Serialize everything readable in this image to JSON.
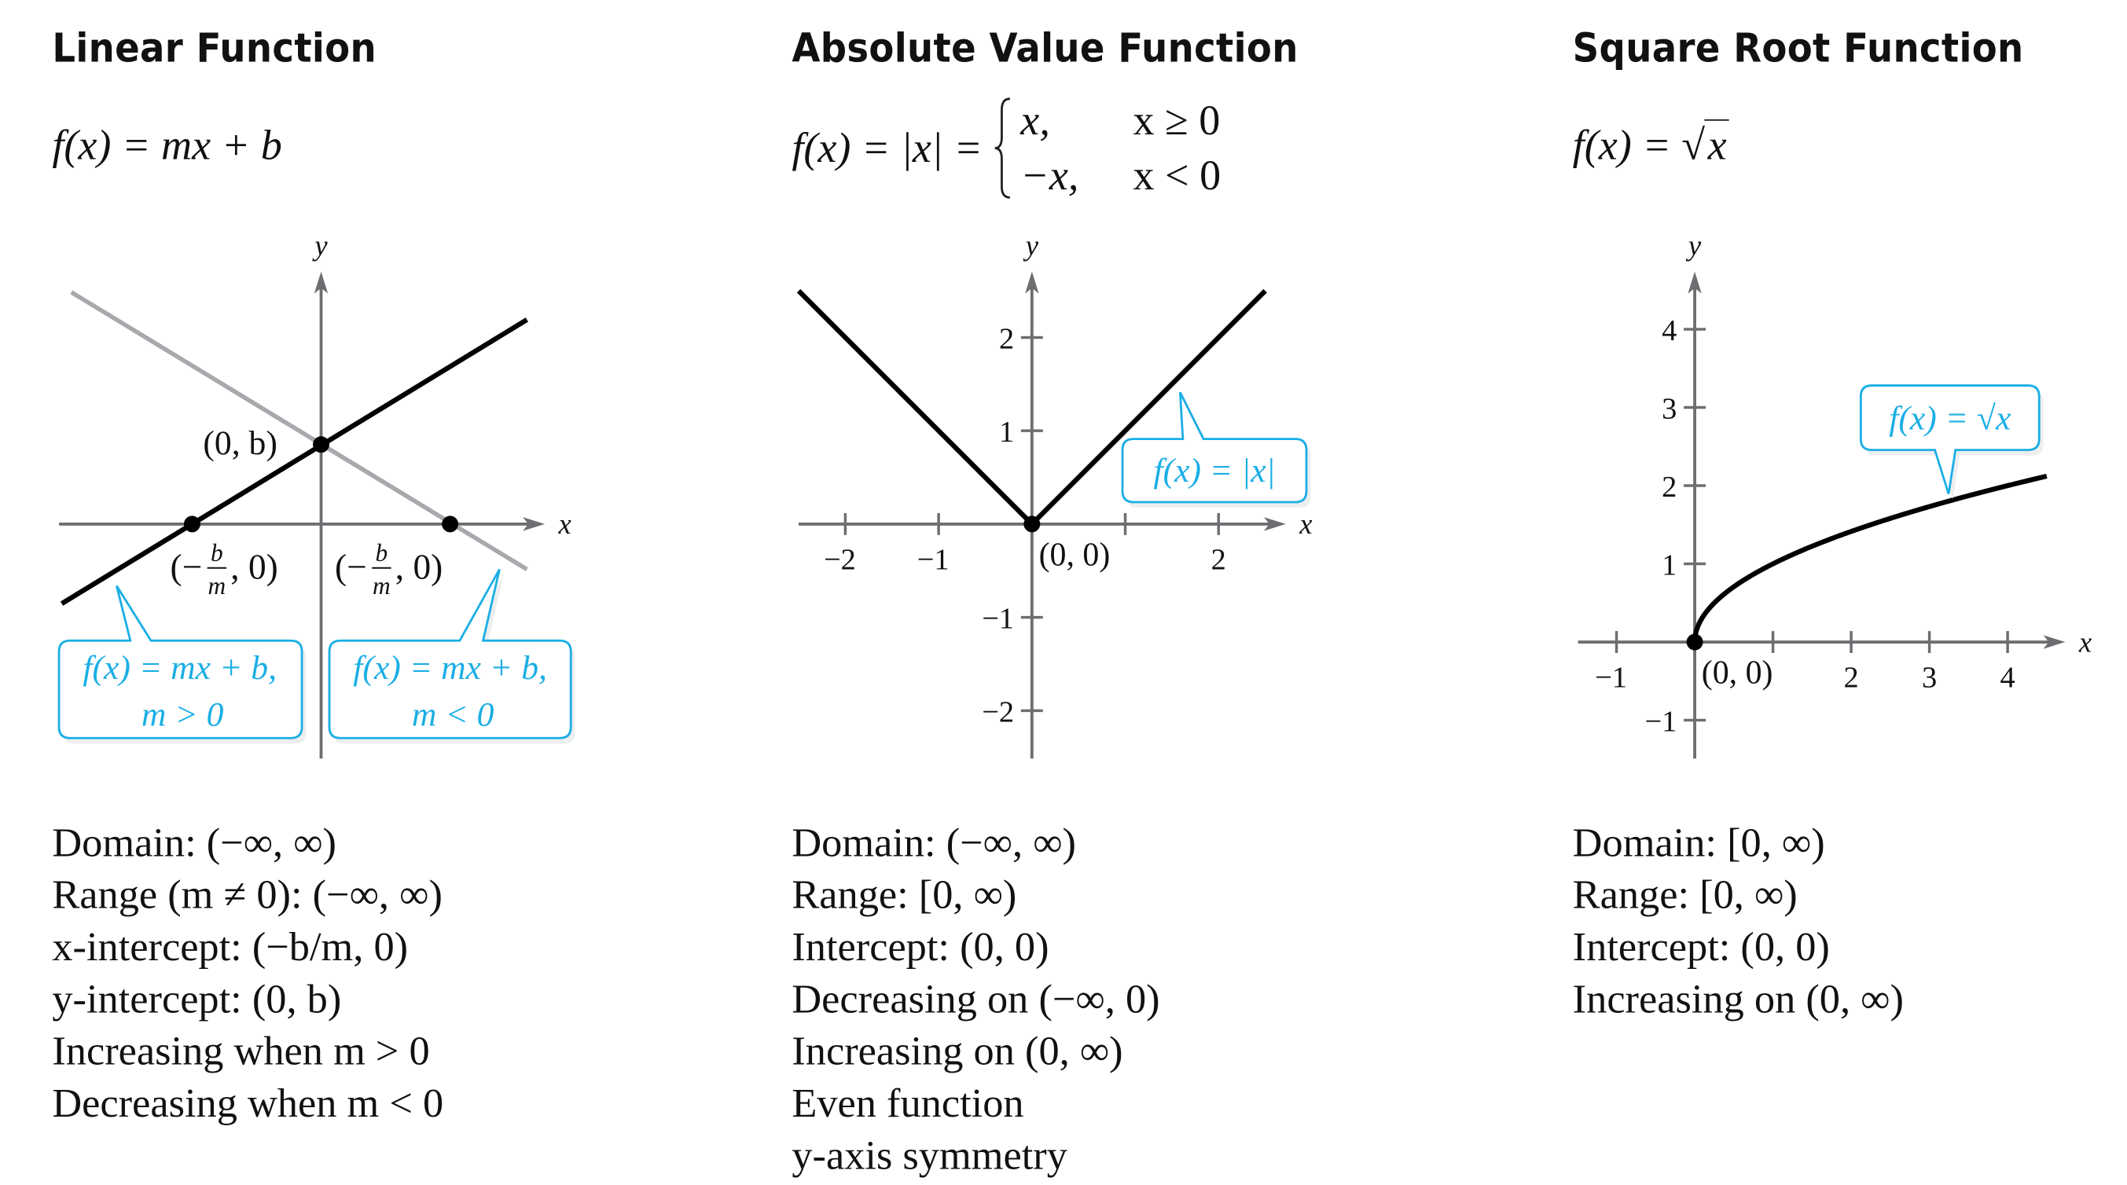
{
  "colors": {
    "axis": "#6d6e71",
    "curve": "#000000",
    "secondary_line": "#a7a9ac",
    "callout": "#1aaee5",
    "text": "#111111"
  },
  "panels": [
    {
      "title": "Linear Function",
      "formula": {
        "lhs": "f(x) = mx + b"
      },
      "properties": [
        "Domain:  (−∞, ∞)",
        "Range (m ≠ 0):  (−∞, ∞)",
        "x-intercept:  (−b/m, 0)",
        "y-intercept:  (0, b)",
        "Increasing when m > 0",
        "Decreasing when m < 0"
      ]
    },
    {
      "title": "Absolute Value Function",
      "formula": {
        "lhs": "f(x) = |x| = ",
        "cases": [
          {
            "expr": "x,",
            "cond": "x ≥ 0"
          },
          {
            "expr": "−x,",
            "cond": "x < 0"
          }
        ]
      },
      "properties": [
        "Domain:  (−∞, ∞)",
        "Range:  [0, ∞)",
        "Intercept:  (0, 0)",
        "Decreasing on (−∞, 0)",
        "Increasing on (0, ∞)",
        "Even function",
        "y-axis symmetry"
      ]
    },
    {
      "title": "Square Root Function",
      "formula": {
        "lhs": "f(x) = ",
        "radicand": "x"
      },
      "properties": [
        "Domain:  [0, ∞)",
        "Range:  [0, ∞)",
        "Intercept:  (0, 0)",
        "Increasing on (0, ∞)"
      ]
    }
  ],
  "chart_data": [
    {
      "type": "line",
      "xlabel": "x",
      "ylabel": "y",
      "ticks": false,
      "series": [
        {
          "name": "f(x) = mx + b, m > 0",
          "slope_sign": "positive",
          "color": "#000000"
        },
        {
          "name": "f(x) = mx + b, m < 0",
          "slope_sign": "negative",
          "color": "#a7a9ac"
        }
      ],
      "callouts": [
        {
          "line1": "f(x) = mx + b,",
          "line2": "m > 0"
        },
        {
          "line1": "f(x) = mx + b,",
          "line2": "m < 0"
        }
      ],
      "points": [
        {
          "label": "(0, b)"
        },
        {
          "label": {
            "open": "(−",
            "num": "b",
            "den": "m",
            "close": ", 0)"
          }
        },
        {
          "label": {
            "open": "(−",
            "num": "b",
            "den": "m",
            "close": ", 0)"
          }
        }
      ]
    },
    {
      "type": "line",
      "xlabel": "x",
      "ylabel": "y",
      "xlim": [
        -2.5,
        2.7
      ],
      "ylim": [
        -2.5,
        2.5
      ],
      "xticks": [
        -2,
        -1,
        1,
        2
      ],
      "xtick_labels": [
        "−2",
        "−1",
        "",
        "2"
      ],
      "yticks": [
        -2,
        -1,
        1,
        2
      ],
      "ytick_labels": [
        "−2",
        "−1",
        "1",
        "2"
      ],
      "series": [
        {
          "name": "f(x) = |x|",
          "x": [
            -2.5,
            0,
            2.5
          ],
          "y": [
            2.5,
            0,
            2.5
          ],
          "color": "#000000"
        }
      ],
      "callouts": [
        {
          "line1": "f(x) = |x|"
        }
      ],
      "points": [
        {
          "x": 0,
          "y": 0,
          "label": "(0, 0)"
        }
      ]
    },
    {
      "type": "line",
      "xlabel": "x",
      "ylabel": "y",
      "xlim": [
        -1.5,
        4.7
      ],
      "ylim": [
        -1.5,
        4.7
      ],
      "xticks": [
        -1,
        1,
        2,
        3,
        4
      ],
      "xtick_labels": [
        "−1",
        "",
        "2",
        "3",
        "4"
      ],
      "yticks": [
        -1,
        1,
        2,
        3,
        4
      ],
      "ytick_labels": [
        "−1",
        "1",
        "2",
        "3",
        "4"
      ],
      "series": [
        {
          "name": "f(x) = √x",
          "function": "sqrt",
          "domain": [
            0,
            4.5
          ],
          "color": "#000000"
        }
      ],
      "callouts": [
        {
          "line1": "f(x) = √x"
        }
      ],
      "points": [
        {
          "x": 0,
          "y": 0,
          "label": "(0, 0)"
        }
      ]
    }
  ]
}
